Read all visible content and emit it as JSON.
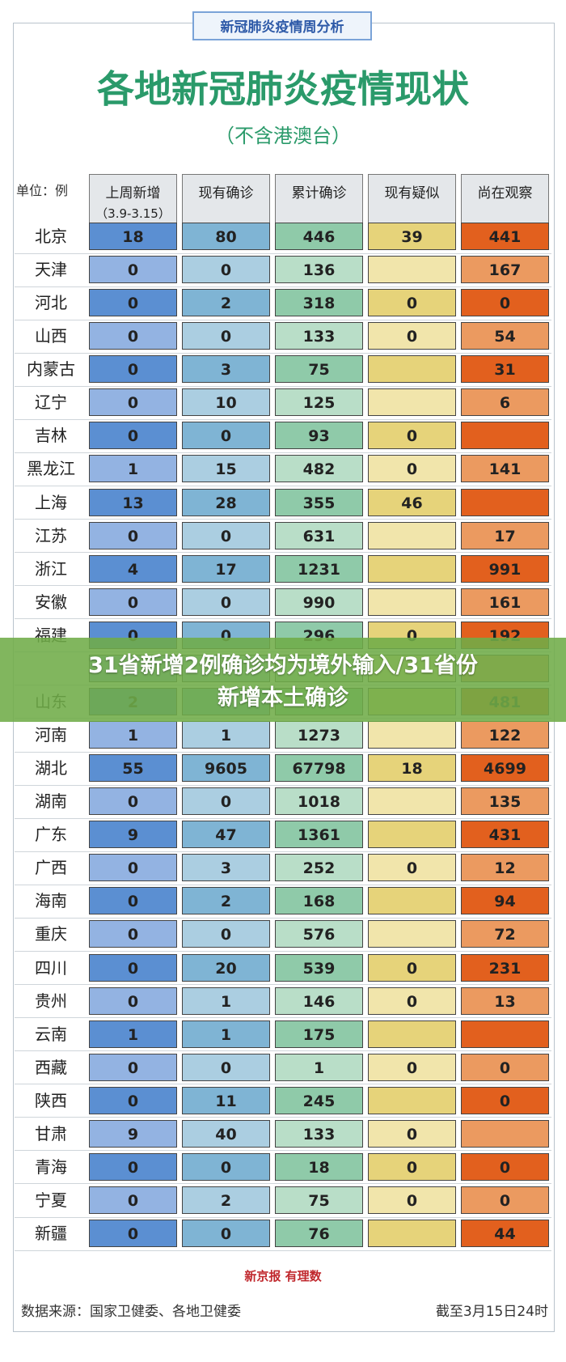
{
  "header": {
    "badge": "新冠肺炎疫情周分析",
    "title": "各地新冠肺炎疫情现状",
    "subtitle": "（不含港澳台）"
  },
  "table": {
    "unit": "单位：例",
    "columns": [
      {
        "name": "上周新增",
        "sub": "（3.9-3.15）"
      },
      {
        "name": "现有确诊"
      },
      {
        "name": "累计确诊"
      },
      {
        "name": "现有疑似"
      },
      {
        "name": "尚在观察"
      }
    ],
    "rows": [
      {
        "label": "北京",
        "cells": [
          18,
          80,
          446,
          39,
          441
        ]
      },
      {
        "label": "天津",
        "cells": [
          0,
          0,
          136,
          null,
          167
        ]
      },
      {
        "label": "河北",
        "cells": [
          0,
          2,
          318,
          0,
          0
        ]
      },
      {
        "label": "山西",
        "cells": [
          0,
          0,
          133,
          0,
          54
        ]
      },
      {
        "label": "内蒙古",
        "cells": [
          0,
          3,
          75,
          null,
          31
        ]
      },
      {
        "label": "辽宁",
        "cells": [
          0,
          10,
          125,
          null,
          6
        ]
      },
      {
        "label": "吉林",
        "cells": [
          0,
          0,
          93,
          0,
          null
        ]
      },
      {
        "label": "黑龙江",
        "cells": [
          1,
          15,
          482,
          0,
          141
        ]
      },
      {
        "label": "上海",
        "cells": [
          13,
          28,
          355,
          46,
          null
        ]
      },
      {
        "label": "江苏",
        "cells": [
          0,
          0,
          631,
          null,
          17
        ]
      },
      {
        "label": "浙江",
        "cells": [
          4,
          17,
          1231,
          null,
          991
        ]
      },
      {
        "label": "安徽",
        "cells": [
          0,
          0,
          990,
          null,
          161
        ]
      },
      {
        "label": "福建",
        "cells": [
          0,
          0,
          296,
          0,
          192
        ]
      },
      {
        "label": null,
        "cells": [
          null,
          null,
          null,
          null,
          null
        ]
      },
      {
        "label": "山东",
        "cells": [
          2,
          null,
          null,
          null,
          481
        ]
      },
      {
        "label": "河南",
        "cells": [
          1,
          1,
          1273,
          null,
          122
        ]
      },
      {
        "label": "湖北",
        "cells": [
          55,
          9605,
          67798,
          18,
          4699
        ]
      },
      {
        "label": "湖南",
        "cells": [
          0,
          0,
          1018,
          null,
          135
        ]
      },
      {
        "label": "广东",
        "cells": [
          9,
          47,
          1361,
          null,
          431
        ]
      },
      {
        "label": "广西",
        "cells": [
          0,
          3,
          252,
          0,
          12
        ]
      },
      {
        "label": "海南",
        "cells": [
          0,
          2,
          168,
          null,
          94
        ]
      },
      {
        "label": "重庆",
        "cells": [
          0,
          0,
          576,
          null,
          72
        ]
      },
      {
        "label": "四川",
        "cells": [
          0,
          20,
          539,
          0,
          231
        ]
      },
      {
        "label": "贵州",
        "cells": [
          0,
          1,
          146,
          0,
          13
        ]
      },
      {
        "label": "云南",
        "cells": [
          1,
          1,
          175,
          null,
          null
        ]
      },
      {
        "label": "西藏",
        "cells": [
          0,
          0,
          1,
          0,
          0
        ]
      },
      {
        "label": "陕西",
        "cells": [
          0,
          11,
          245,
          null,
          0
        ]
      },
      {
        "label": "甘肃",
        "cells": [
          9,
          40,
          133,
          0,
          null
        ]
      },
      {
        "label": "青海",
        "cells": [
          0,
          0,
          18,
          0,
          0
        ]
      },
      {
        "label": "宁夏",
        "cells": [
          0,
          2,
          75,
          0,
          0
        ]
      },
      {
        "label": "新疆",
        "cells": [
          0,
          0,
          76,
          null,
          44
        ]
      }
    ]
  },
  "banner": {
    "lines": [
      "31省新增2例确诊均为境外输入/31省份",
      "新增本土确诊"
    ]
  },
  "footer": {
    "logo": "新京报 有理数",
    "source": "数据来源：国家卫健委、各地卫健委",
    "date": "截至3月15日24时"
  }
}
